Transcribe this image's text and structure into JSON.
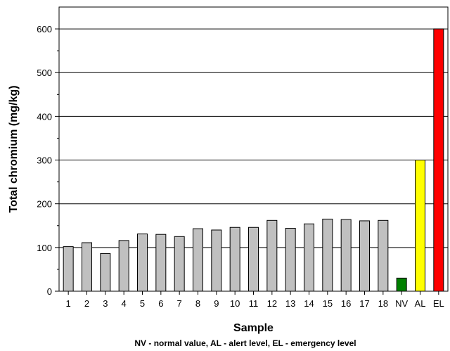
{
  "chart_data": {
    "type": "bar",
    "xlabel": "Sample",
    "ylabel": "Total chromium (mg/kg)",
    "note": "NV - normal value, AL - alert level, EL - emergency level",
    "categories": [
      "1",
      "2",
      "3",
      "4",
      "5",
      "6",
      "7",
      "8",
      "9",
      "10",
      "11",
      "12",
      "13",
      "14",
      "15",
      "16",
      "17",
      "18",
      "NV",
      "AL",
      "EL"
    ],
    "values": [
      102,
      111,
      86,
      116,
      131,
      130,
      125,
      143,
      140,
      146,
      146,
      162,
      144,
      154,
      165,
      164,
      161,
      162,
      30,
      300,
      600
    ],
    "bar_colors": [
      "#c0c0c0",
      "#c0c0c0",
      "#c0c0c0",
      "#c0c0c0",
      "#c0c0c0",
      "#c0c0c0",
      "#c0c0c0",
      "#c0c0c0",
      "#c0c0c0",
      "#c0c0c0",
      "#c0c0c0",
      "#c0c0c0",
      "#c0c0c0",
      "#c0c0c0",
      "#c0c0c0",
      "#c0c0c0",
      "#c0c0c0",
      "#c0c0c0",
      "#008000",
      "#ffff00",
      "#ff0000"
    ],
    "ylim": [
      0,
      650
    ],
    "yticks": [
      0,
      100,
      200,
      300,
      400,
      500,
      600
    ],
    "grid": "horizontal"
  }
}
